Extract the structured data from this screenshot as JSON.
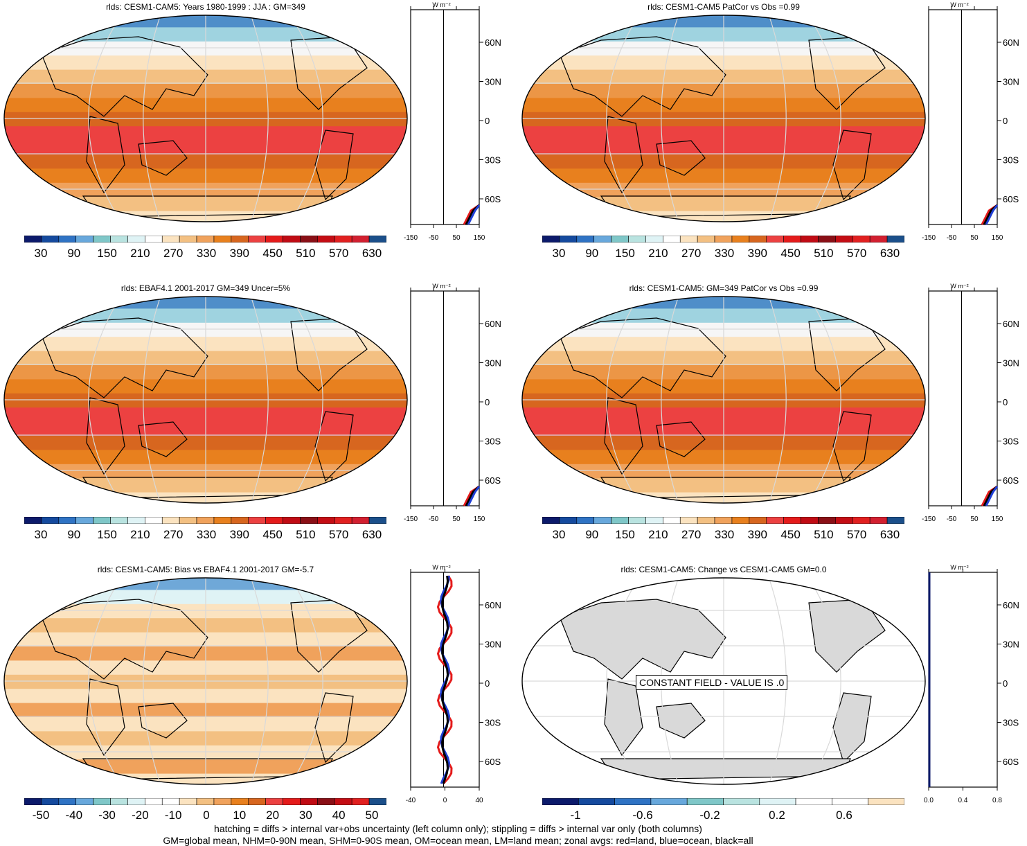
{
  "panels": [
    {
      "id": "p1",
      "title": "rlds: CESM1-CAM5: Years 1980-1999 : JJA : GM=349"
    },
    {
      "id": "p2",
      "title": "rlds: CESM1-CAM5 PatCor vs Obs =0.99"
    },
    {
      "id": "p3",
      "title": "rlds: EBAF4.1 2001-2017 GM=349 Uncer=5%"
    },
    {
      "id": "p4",
      "title": "rlds: CESM1-CAM5: GM=349 PatCor vs Obs =0.99"
    },
    {
      "id": "p5",
      "title": "rlds: CESM1-CAM5: Bias vs EBAF4.1 2001-2017 GM=-5.7"
    },
    {
      "id": "p6",
      "title": "rlds: CESM1-CAM5: Change vs CESM1-CAM5 GM=0.0"
    }
  ],
  "zonal": {
    "unit_label": "W m⁻²",
    "lat_ticks": [
      "60N",
      "30N",
      "0",
      "30S",
      "60S"
    ],
    "x_ticks_abs": [
      "-150",
      "-50",
      "50",
      "150"
    ],
    "x_ticks_bias": [
      "-40",
      "0",
      "40"
    ],
    "x_ticks_change": [
      "0.0",
      "0.4",
      "0.8"
    ]
  },
  "colorbars": {
    "abs_labels": [
      "30",
      "90",
      "150",
      "210",
      "270",
      "330",
      "390",
      "450",
      "510",
      "570",
      "630"
    ],
    "bias_labels": [
      "-50",
      "-40",
      "-30",
      "-20",
      "-10",
      "0",
      "10",
      "20",
      "30",
      "40",
      "50"
    ],
    "change_labels": [
      "-1",
      "-0.6",
      "-0.2",
      "0.2",
      "0.6"
    ],
    "abs_colors": [
      "#0c1a6b",
      "#154a9e",
      "#2f73c4",
      "#68a8dc",
      "#7fc7c8",
      "#b9e3e0",
      "#dff3f5",
      "#ffffff",
      "#fbe3c0",
      "#f3c082",
      "#f0a25c",
      "#e8801e",
      "#d7661f",
      "#ec4141",
      "#e41b1b",
      "#c00b14",
      "#8a0f16",
      "#c40d14",
      "#e12020",
      "#d22030",
      "#1b4f8a"
    ],
    "bias_colors": [
      "#0c1a6b",
      "#154a9e",
      "#2f73c4",
      "#68a8dc",
      "#7fc7c8",
      "#b9e3e0",
      "#dff3f5",
      "#ffffff",
      "#ffffff",
      "#fbe3c0",
      "#f3c082",
      "#f0a25c",
      "#e8801e",
      "#d7661f",
      "#ec4141",
      "#e41b1b",
      "#c00b14",
      "#8a0f16",
      "#c40d14",
      "#e12020",
      "#1b4f8a"
    ],
    "change_colors": [
      "#0c1a6b",
      "#154a9e",
      "#2f73c4",
      "#68a8dc",
      "#7fc7c8",
      "#b9e3e0",
      "#dff3f5",
      "#ffffff",
      "#ffffff",
      "#fbe3c0"
    ]
  },
  "constant_field_label": "CONSTANT FIELD - VALUE IS .0",
  "footer": {
    "line1": "hatching = diffs > internal var+obs uncertainty (left column only); stippling = diffs > internal var only (both columns)",
    "line2": "GM=global mean, NHM=0-90N mean, SHM=0-90S mean, OM=ocean mean, LM=land mean; zonal avgs: red=land, blue=ocean, black=all"
  }
}
